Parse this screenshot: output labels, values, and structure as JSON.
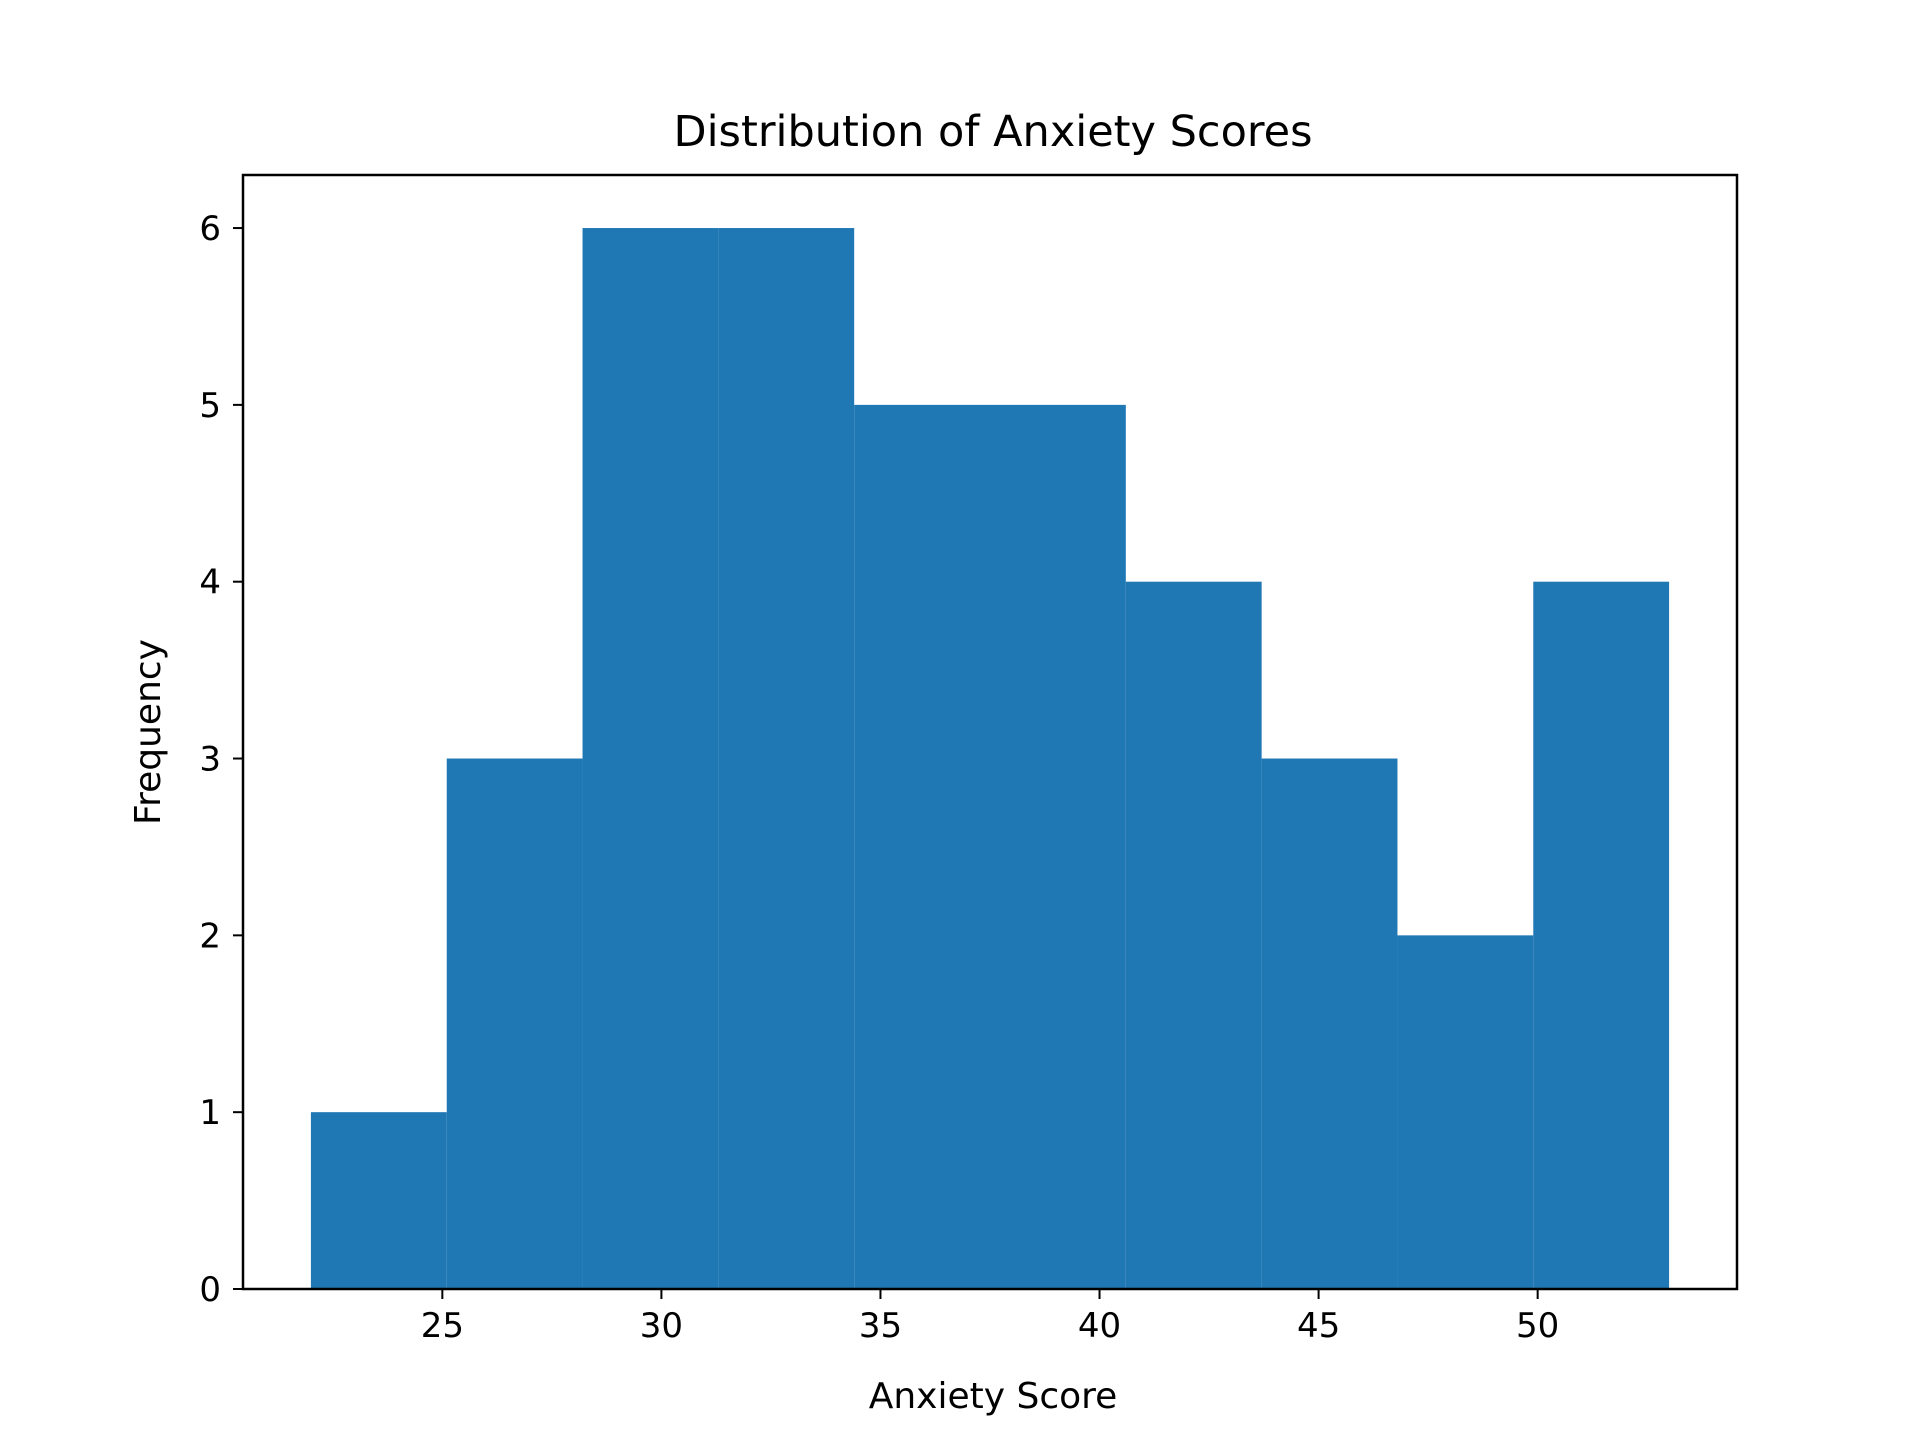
{
  "chart_data": {
    "type": "bar",
    "title": "Distribution of Anxiety Scores",
    "xlabel": "Anxiety Score",
    "ylabel": "Frequency",
    "xlim": [
      20.45,
      54.55
    ],
    "ylim": [
      0,
      6.3
    ],
    "x_ticks": [
      25,
      30,
      35,
      40,
      45,
      50
    ],
    "y_ticks": [
      0,
      1,
      2,
      3,
      4,
      5,
      6
    ],
    "bin_edges": [
      22,
      25.1,
      28.2,
      31.3,
      34.4,
      37.5,
      40.6,
      43.7,
      46.8,
      49.9,
      53
    ],
    "values": [
      1,
      3,
      6,
      6,
      5,
      5,
      4,
      3,
      2,
      4
    ],
    "bar_color": "#1f77b4",
    "grid": false,
    "legend": "none"
  }
}
